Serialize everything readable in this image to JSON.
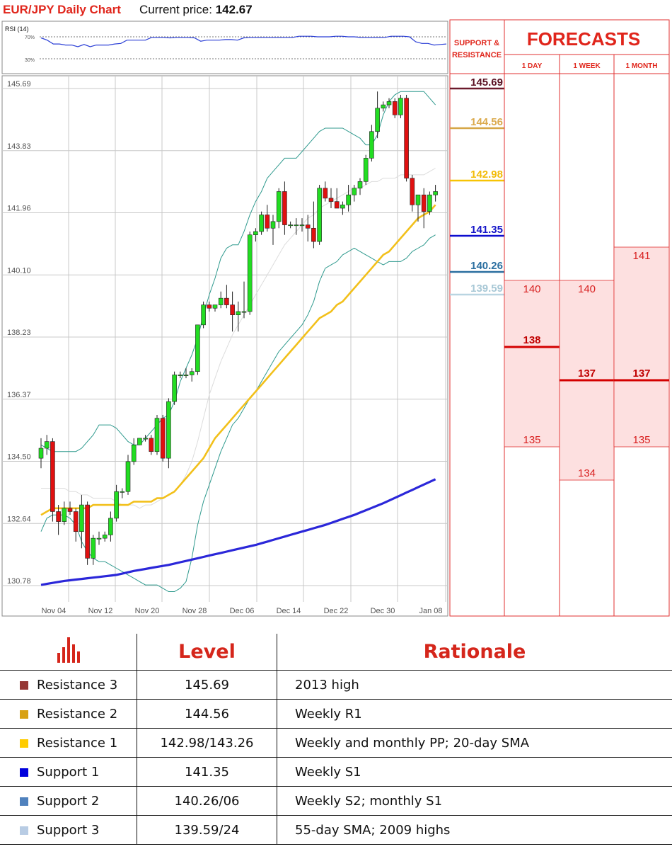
{
  "header": {
    "title": "EUR/JPY Daily Chart",
    "price_label": "Current price:",
    "price_value": "142.67"
  },
  "rsi": {
    "label": "RSI (14)",
    "upper_label": "70%",
    "lower_label": "30%",
    "upper": 70,
    "lower": 30,
    "values": [
      68,
      64,
      57,
      57,
      55,
      55,
      52,
      56,
      52,
      55,
      55,
      55,
      57,
      58,
      64,
      64,
      64,
      64,
      69,
      69,
      69,
      68,
      69,
      69,
      69,
      68,
      62,
      64,
      64,
      64,
      65,
      65,
      64,
      68,
      69,
      69,
      69,
      69,
      69,
      69,
      69,
      69,
      71,
      71,
      71,
      70,
      70,
      70,
      71,
      71,
      70,
      70,
      69,
      69,
      69,
      69,
      69,
      71,
      71,
      71,
      70,
      61,
      58,
      58,
      55,
      56,
      57
    ]
  },
  "chart_data": {
    "type": "candlestick",
    "title": "EUR/JPY Daily Chart",
    "ylim": [
      130.78,
      145.69
    ],
    "y_ticks": [
      "145.69",
      "143.83",
      "141.96",
      "140.10",
      "138.23",
      "136.37",
      "134.50",
      "132.64",
      "130.78"
    ],
    "x_ticks": [
      "Nov 04",
      "Nov 12",
      "Nov 20",
      "Nov 28",
      "Dec 06",
      "Dec 14",
      "Dec 22",
      "Dec 30",
      "Jan 08"
    ],
    "candles": [
      {
        "o": 134.6,
        "h": 135.2,
        "l": 134.3,
        "c": 134.9
      },
      {
        "o": 134.9,
        "h": 135.3,
        "l": 134.7,
        "c": 135.1
      },
      {
        "o": 135.1,
        "h": 135.2,
        "l": 132.7,
        "c": 133.0
      },
      {
        "o": 133.0,
        "h": 133.2,
        "l": 132.3,
        "c": 132.7
      },
      {
        "o": 132.7,
        "h": 133.3,
        "l": 132.6,
        "c": 133.1
      },
      {
        "o": 133.1,
        "h": 133.3,
        "l": 132.9,
        "c": 133.0
      },
      {
        "o": 133.0,
        "h": 133.1,
        "l": 132.1,
        "c": 132.4
      },
      {
        "o": 132.4,
        "h": 133.5,
        "l": 131.9,
        "c": 133.2
      },
      {
        "o": 133.2,
        "h": 133.3,
        "l": 131.4,
        "c": 131.6
      },
      {
        "o": 131.6,
        "h": 132.3,
        "l": 131.4,
        "c": 132.2
      },
      {
        "o": 132.2,
        "h": 132.4,
        "l": 132.0,
        "c": 132.2
      },
      {
        "o": 132.2,
        "h": 132.4,
        "l": 132.1,
        "c": 132.3
      },
      {
        "o": 132.3,
        "h": 133.0,
        "l": 132.1,
        "c": 132.8
      },
      {
        "o": 132.8,
        "h": 133.8,
        "l": 132.7,
        "c": 133.6
      },
      {
        "o": 133.6,
        "h": 133.7,
        "l": 133.4,
        "c": 133.6
      },
      {
        "o": 133.6,
        "h": 134.7,
        "l": 133.5,
        "c": 134.5
      },
      {
        "o": 134.5,
        "h": 135.2,
        "l": 134.4,
        "c": 135.0
      },
      {
        "o": 135.0,
        "h": 135.2,
        "l": 135.0,
        "c": 135.2
      },
      {
        "o": 135.2,
        "h": 135.3,
        "l": 135.1,
        "c": 135.2
      },
      {
        "o": 135.2,
        "h": 135.3,
        "l": 134.7,
        "c": 134.8
      },
      {
        "o": 134.8,
        "h": 135.9,
        "l": 134.7,
        "c": 135.8
      },
      {
        "o": 135.8,
        "h": 135.9,
        "l": 134.5,
        "c": 134.6
      },
      {
        "o": 134.6,
        "h": 136.4,
        "l": 134.3,
        "c": 136.3
      },
      {
        "o": 136.3,
        "h": 137.2,
        "l": 136.2,
        "c": 137.1
      },
      {
        "o": 137.1,
        "h": 137.2,
        "l": 137.0,
        "c": 137.1
      },
      {
        "o": 137.1,
        "h": 137.3,
        "l": 137.0,
        "c": 137.1
      },
      {
        "o": 137.1,
        "h": 137.3,
        "l": 136.9,
        "c": 137.2
      },
      {
        "o": 137.2,
        "h": 138.6,
        "l": 137.1,
        "c": 138.6
      },
      {
        "o": 138.6,
        "h": 139.3,
        "l": 138.5,
        "c": 139.2
      },
      {
        "o": 139.2,
        "h": 139.3,
        "l": 139.0,
        "c": 139.1
      },
      {
        "o": 139.1,
        "h": 139.2,
        "l": 139.0,
        "c": 139.2
      },
      {
        "o": 139.2,
        "h": 139.6,
        "l": 139.1,
        "c": 139.4
      },
      {
        "o": 139.4,
        "h": 139.8,
        "l": 139.1,
        "c": 139.2
      },
      {
        "o": 139.2,
        "h": 139.6,
        "l": 138.4,
        "c": 138.9
      },
      {
        "o": 138.9,
        "h": 139.3,
        "l": 138.4,
        "c": 139.0
      },
      {
        "o": 139.0,
        "h": 139.9,
        "l": 138.8,
        "c": 139.0
      },
      {
        "o": 139.0,
        "h": 141.4,
        "l": 138.9,
        "c": 141.3
      },
      {
        "o": 141.3,
        "h": 141.5,
        "l": 141.1,
        "c": 141.4
      },
      {
        "o": 141.4,
        "h": 142.0,
        "l": 141.3,
        "c": 141.9
      },
      {
        "o": 141.9,
        "h": 142.2,
        "l": 141.4,
        "c": 141.5
      },
      {
        "o": 141.5,
        "h": 141.9,
        "l": 141.0,
        "c": 141.7
      },
      {
        "o": 141.7,
        "h": 142.7,
        "l": 141.5,
        "c": 142.6
      },
      {
        "o": 142.6,
        "h": 142.9,
        "l": 141.3,
        "c": 141.6
      },
      {
        "o": 141.6,
        "h": 141.7,
        "l": 141.5,
        "c": 141.6
      },
      {
        "o": 141.6,
        "h": 141.8,
        "l": 141.3,
        "c": 141.6
      },
      {
        "o": 141.6,
        "h": 141.8,
        "l": 141.4,
        "c": 141.6
      },
      {
        "o": 141.6,
        "h": 141.9,
        "l": 141.1,
        "c": 141.5
      },
      {
        "o": 141.5,
        "h": 142.3,
        "l": 140.9,
        "c": 141.1
      },
      {
        "o": 141.1,
        "h": 142.8,
        "l": 141.0,
        "c": 142.7
      },
      {
        "o": 142.7,
        "h": 142.9,
        "l": 142.3,
        "c": 142.4
      },
      {
        "o": 142.4,
        "h": 142.7,
        "l": 142.1,
        "c": 142.3
      },
      {
        "o": 142.3,
        "h": 142.7,
        "l": 142.1,
        "c": 142.1
      },
      {
        "o": 142.1,
        "h": 142.3,
        "l": 141.9,
        "c": 142.2
      },
      {
        "o": 142.2,
        "h": 142.8,
        "l": 142.0,
        "c": 142.5
      },
      {
        "o": 142.5,
        "h": 142.8,
        "l": 142.3,
        "c": 142.7
      },
      {
        "o": 142.7,
        "h": 143.0,
        "l": 142.5,
        "c": 142.9
      },
      {
        "o": 142.9,
        "h": 143.7,
        "l": 142.8,
        "c": 143.6
      },
      {
        "o": 143.6,
        "h": 144.6,
        "l": 143.5,
        "c": 144.4
      },
      {
        "o": 144.4,
        "h": 145.6,
        "l": 144.2,
        "c": 145.1
      },
      {
        "o": 145.1,
        "h": 145.3,
        "l": 145.0,
        "c": 145.2
      },
      {
        "o": 145.2,
        "h": 145.4,
        "l": 145.1,
        "c": 145.3
      },
      {
        "o": 145.3,
        "h": 145.4,
        "l": 144.8,
        "c": 144.9
      },
      {
        "o": 144.9,
        "h": 145.5,
        "l": 144.8,
        "c": 145.4
      },
      {
        "o": 145.4,
        "h": 145.5,
        "l": 142.9,
        "c": 143.0
      },
      {
        "o": 143.0,
        "h": 143.1,
        "l": 142.0,
        "c": 142.2
      },
      {
        "o": 142.2,
        "h": 142.5,
        "l": 141.7,
        "c": 142.5
      },
      {
        "o": 142.5,
        "h": 142.7,
        "l": 141.5,
        "c": 142.0
      },
      {
        "o": 142.0,
        "h": 142.6,
        "l": 141.9,
        "c": 142.5
      },
      {
        "o": 142.5,
        "h": 142.8,
        "l": 142.3,
        "c": 142.6
      }
    ],
    "series": [
      {
        "name": "",
        "color": "#2f9a8e",
        "values": [
          135.0,
          134.9,
          134.8,
          134.8,
          134.8,
          134.8,
          134.8,
          134.9,
          135.1,
          135.3,
          135.6,
          135.6,
          135.6,
          135.5,
          135.3,
          135.1,
          135.0,
          135.0,
          135.2,
          135.4,
          135.6,
          135.8,
          135.9,
          136.3,
          136.9,
          137.3,
          137.7,
          138.2,
          138.9,
          139.5,
          140.0,
          140.6,
          140.9,
          141.0,
          141.0,
          141.4,
          141.9,
          142.3,
          142.6,
          143.0,
          143.2,
          143.4,
          143.6,
          143.6,
          143.6,
          143.8,
          144.0,
          144.2,
          144.4,
          144.5,
          144.5,
          144.5,
          144.5,
          144.4,
          144.3,
          144.2,
          144.0,
          144.0,
          144.3,
          144.9,
          145.3,
          145.5,
          145.6,
          145.6,
          145.6,
          145.6,
          145.6,
          145.4,
          145.2
        ]
      },
      {
        "name": "",
        "color": "#2f9a8e",
        "values": [
          132.4,
          132.8,
          132.9,
          132.9,
          132.9,
          132.8,
          132.6,
          132.1,
          131.8,
          131.6,
          131.5,
          131.5,
          131.4,
          131.3,
          131.2,
          131.1,
          131.0,
          130.9,
          130.8,
          130.8,
          130.8,
          130.7,
          130.6,
          130.6,
          130.7,
          130.9,
          131.6,
          132.6,
          133.3,
          133.8,
          134.3,
          134.8,
          135.2,
          135.6,
          135.8,
          136.1,
          136.4,
          136.6,
          136.9,
          137.2,
          137.5,
          137.8,
          138.0,
          138.2,
          138.4,
          138.6,
          138.9,
          139.3,
          139.9,
          140.3,
          140.4,
          140.5,
          140.7,
          140.8,
          140.9,
          140.8,
          140.7,
          140.6,
          140.5,
          140.4,
          140.5,
          140.5,
          140.5,
          140.6,
          140.8,
          140.9,
          141.0,
          141.2,
          141.3
        ]
      },
      {
        "name": "",
        "color": "#dcdcdc",
        "values": [
          133.7,
          133.7,
          133.7,
          133.7,
          133.7,
          133.6,
          133.6,
          133.5,
          133.5,
          133.4,
          133.4,
          133.4,
          133.4,
          133.3,
          133.2,
          133.2,
          133.2,
          133.1,
          133.2,
          133.2,
          133.3,
          133.4,
          133.5,
          133.6,
          133.8,
          134.1,
          134.5,
          135.1,
          135.8,
          136.5,
          137.0,
          137.5,
          137.9,
          138.3,
          138.6,
          138.9,
          139.2,
          139.5,
          139.8,
          140.1,
          140.4,
          140.7,
          141.0,
          141.2,
          141.4,
          141.6,
          141.8,
          141.9,
          142.1,
          142.2,
          142.3,
          142.4,
          142.5,
          142.6,
          142.7,
          142.7,
          142.8,
          142.9,
          142.9,
          143.0,
          143.0,
          143.0,
          143.1,
          143.1,
          143.1,
          143.1,
          143.1,
          143.2,
          143.3
        ]
      },
      {
        "name": "",
        "color": "#f2c01b",
        "values": [
          132.9,
          133.0,
          133.1,
          133.1,
          133.1,
          133.1,
          133.1,
          133.1,
          133.1,
          133.2,
          133.2,
          133.2,
          133.2,
          133.2,
          133.2,
          133.2,
          133.3,
          133.3,
          133.3,
          133.3,
          133.4,
          133.4,
          133.5,
          133.6,
          133.8,
          134.0,
          134.2,
          134.4,
          134.6,
          134.9,
          135.2,
          135.4,
          135.6,
          135.8,
          136.0,
          136.2,
          136.4,
          136.6,
          136.8,
          137.0,
          137.2,
          137.4,
          137.6,
          137.8,
          138.0,
          138.2,
          138.4,
          138.6,
          138.8,
          138.9,
          139.0,
          139.2,
          139.3,
          139.5,
          139.7,
          139.9,
          140.1,
          140.3,
          140.5,
          140.7,
          140.8,
          141.0,
          141.2,
          141.4,
          141.6,
          141.8,
          141.9,
          142.0,
          142.2
        ]
      },
      {
        "name": "",
        "color": "#2b27d9",
        "values": [
          130.8,
          130.83,
          130.86,
          130.89,
          130.92,
          130.94,
          130.96,
          130.98,
          131.0,
          131.02,
          131.04,
          131.06,
          131.08,
          131.1,
          131.14,
          131.18,
          131.22,
          131.25,
          131.28,
          131.31,
          131.34,
          131.37,
          131.4,
          131.44,
          131.48,
          131.52,
          131.56,
          131.6,
          131.64,
          131.68,
          131.72,
          131.76,
          131.8,
          131.84,
          131.88,
          131.92,
          131.96,
          132.0,
          132.05,
          132.1,
          132.15,
          132.2,
          132.25,
          132.3,
          132.35,
          132.4,
          132.45,
          132.5,
          132.55,
          132.6,
          132.66,
          132.72,
          132.78,
          132.84,
          132.9,
          132.97,
          133.04,
          133.11,
          133.18,
          133.25,
          133.33,
          133.41,
          133.49,
          133.57,
          133.65,
          133.73,
          133.81,
          133.89,
          133.97
        ]
      }
    ]
  },
  "support_resistance": {
    "header": "SUPPORT & RESISTANCE",
    "levels": [
      {
        "label": "145.69",
        "value": 145.69,
        "color": "#6b1a2c",
        "text_color": "#5a1022"
      },
      {
        "label": "144.56",
        "value": 144.56,
        "color": "#d6a646",
        "text_color": "#dbaa4d"
      },
      {
        "label": "142.98",
        "value": 142.98,
        "color": "#f7c404",
        "text_color": "#f2bc09"
      },
      {
        "label": "141.35",
        "value": 141.35,
        "color": "#0d0dcf",
        "text_color": "#1414c8"
      },
      {
        "label": "140.26",
        "value": 140.26,
        "color": "#2b6fa0",
        "text_color": "#2b6fa0"
      },
      {
        "label": "139.59",
        "value": 139.59,
        "color": "#b9d5e1",
        "text_color": "#a8c8d6"
      }
    ]
  },
  "forecasts": {
    "title": "FORECASTS",
    "columns": [
      {
        "label": "1 DAY",
        "high": "140",
        "median": "138",
        "low": "135",
        "high_value": 140,
        "median_value": 138,
        "low_value": 135
      },
      {
        "label": "1 WEEK",
        "high": "140",
        "median": "137",
        "low": "134",
        "high_value": 140,
        "median_value": 137,
        "low_value": 134
      },
      {
        "label": "1 MONTH",
        "high": "141",
        "median": "137",
        "low": "135",
        "high_value": 141,
        "median_value": 137,
        "low_value": 135
      }
    ]
  },
  "table": {
    "headers": {
      "level": "Level",
      "rationale": "Rationale"
    },
    "rows": [
      {
        "name": "Resistance 3",
        "level": "145.69",
        "rationale": "2013 high",
        "color": "#953735"
      },
      {
        "name": "Resistance 2",
        "level": "144.56",
        "rationale": "Weekly R1",
        "color": "#d8a113"
      },
      {
        "name": "Resistance 1",
        "level": "142.98/143.26",
        "rationale": "Weekly and monthly PP; 20-day SMA",
        "color": "#ffcc00"
      },
      {
        "name": "Support 1",
        "level": "141.35",
        "rationale": "Weekly S1",
        "color": "#0000dd"
      },
      {
        "name": "Support 2",
        "level": "140.26/06",
        "rationale": "Weekly S2; monthly S1",
        "color": "#4f81bd"
      },
      {
        "name": "Support 3",
        "level": "139.59/24",
        "rationale": "55-day SMA; 2009 highs",
        "color": "#b8cce4"
      }
    ]
  }
}
